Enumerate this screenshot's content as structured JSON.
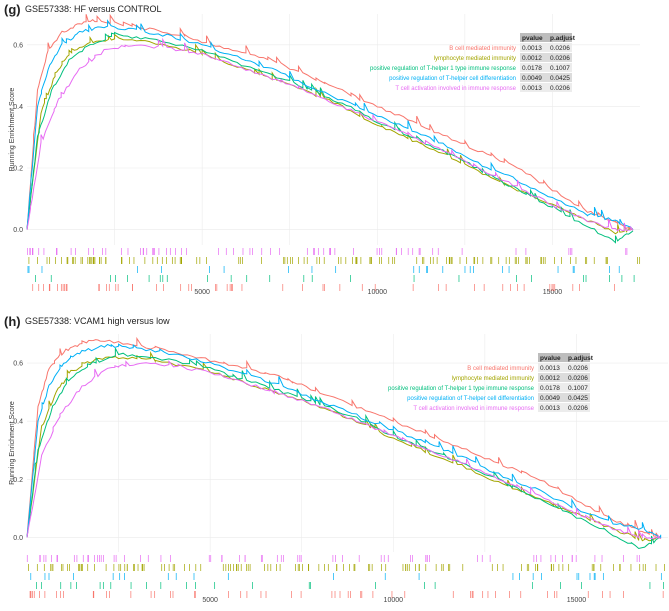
{
  "chart_data": [
    {
      "type": "line",
      "panel_label": "(g)",
      "title": "GSE57338: HF versus CONTROL",
      "ylabel": "Running Enrichment Score",
      "xlabel": "",
      "xlim": [
        0,
        17500
      ],
      "ylim": [
        -0.05,
        0.7
      ],
      "xticks": [
        "5000",
        "10000",
        "15000"
      ],
      "yticks": [
        "0.0",
        "0.2",
        "0.4",
        "0.6"
      ],
      "grid": true,
      "legend_position": "top-right",
      "table_headers": [
        "pvalue",
        "p.adjust"
      ],
      "series": [
        {
          "name": "B cell mediated immunity",
          "color": "#f8766d",
          "pvalue": "0.0013",
          "padjust": "0.0206",
          "x": [
            0,
            300,
            600,
            1000,
            1500,
            2000,
            3000,
            4000,
            5000,
            6000,
            7000,
            8000,
            9000,
            10000,
            11000,
            12000,
            13000,
            14000,
            15000,
            16000,
            16800,
            17300
          ],
          "y": [
            0.0,
            0.45,
            0.58,
            0.64,
            0.67,
            0.68,
            0.66,
            0.64,
            0.61,
            0.58,
            0.55,
            0.5,
            0.45,
            0.4,
            0.35,
            0.3,
            0.25,
            0.2,
            0.13,
            0.06,
            0.02,
            0.0
          ]
        },
        {
          "name": "lymphocyte mediated immunity",
          "color": "#a3a500",
          "pvalue": "0.0012",
          "padjust": "0.0206",
          "x": [
            0,
            400,
            800,
            1200,
            1800,
            2500,
            3500,
            5000,
            6000,
            7000,
            8000,
            9000,
            10000,
            11000,
            12000,
            13000,
            14000,
            15000,
            16000,
            16800,
            17300
          ],
          "y": [
            0.0,
            0.38,
            0.5,
            0.57,
            0.61,
            0.62,
            0.61,
            0.57,
            0.53,
            0.49,
            0.45,
            0.4,
            0.34,
            0.29,
            0.24,
            0.18,
            0.13,
            0.08,
            0.03,
            -0.01,
            0.0
          ]
        },
        {
          "name": "positive regulation of T-helper 1 type immune response",
          "color": "#00bf7d",
          "pvalue": "0.0178",
          "padjust": "0.1007",
          "x": [
            0,
            300,
            700,
            1200,
            1800,
            2500,
            3500,
            5000,
            6000,
            7000,
            8000,
            9000,
            10000,
            11000,
            12000,
            13000,
            14000,
            15000,
            16000,
            16800,
            17300
          ],
          "y": [
            0.0,
            0.3,
            0.45,
            0.55,
            0.6,
            0.63,
            0.62,
            0.58,
            0.54,
            0.5,
            0.46,
            0.41,
            0.35,
            0.3,
            0.25,
            0.19,
            0.13,
            0.07,
            0.01,
            -0.04,
            0.0
          ]
        },
        {
          "name": "positive regulation of T-helper cell differentiation",
          "color": "#00b0f6",
          "pvalue": "0.0049",
          "padjust": "0.0425",
          "x": [
            0,
            300,
            600,
            1000,
            1500,
            2200,
            3000,
            4000,
            5000,
            6000,
            7000,
            8000,
            9000,
            10000,
            11000,
            12000,
            13000,
            14000,
            15000,
            16000,
            16800,
            17300
          ],
          "y": [
            0.0,
            0.4,
            0.52,
            0.6,
            0.64,
            0.66,
            0.65,
            0.63,
            0.6,
            0.56,
            0.52,
            0.47,
            0.42,
            0.37,
            0.32,
            0.27,
            0.21,
            0.16,
            0.1,
            0.05,
            0.03,
            0.0
          ]
        },
        {
          "name": "T cell activation involved in immune response",
          "color": "#e76bf3",
          "pvalue": "0.0013",
          "padjust": "0.0206",
          "x": [
            0,
            400,
            900,
            1500,
            2200,
            3000,
            4000,
            5000,
            6000,
            7000,
            8000,
            9000,
            10000,
            11000,
            12000,
            13000,
            14000,
            15000,
            16000,
            16800,
            17300
          ],
          "y": [
            0.0,
            0.28,
            0.42,
            0.52,
            0.58,
            0.6,
            0.59,
            0.57,
            0.53,
            0.49,
            0.45,
            0.4,
            0.35,
            0.3,
            0.25,
            0.19,
            0.14,
            0.08,
            0.03,
            0.0,
            0.0
          ]
        }
      ]
    },
    {
      "type": "line",
      "panel_label": "(h)",
      "title": "GSE57338: VCAM1 high versus low",
      "ylabel": "Running Enrichment Score",
      "xlabel": "",
      "xlim": [
        0,
        17500
      ],
      "ylim": [
        -0.05,
        0.7
      ],
      "xticks": [
        "5000",
        "10000",
        "15000"
      ],
      "yticks": [
        "0.0",
        "0.2",
        "0.4",
        "0.6"
      ],
      "grid": true,
      "legend_position": "top-right",
      "table_headers": [
        "pvalue",
        "p.adjust"
      ],
      "series": [
        {
          "name": "B cell mediated immunity",
          "color": "#f8766d",
          "pvalue": "0.0013",
          "padjust": "0.0206",
          "x": [
            0,
            300,
            600,
            1000,
            1500,
            2000,
            3000,
            4000,
            5000,
            6000,
            7000,
            8000,
            9000,
            10000,
            11000,
            12000,
            13000,
            14000,
            15000,
            16000,
            16800,
            17300
          ],
          "y": [
            0.0,
            0.45,
            0.58,
            0.64,
            0.67,
            0.68,
            0.66,
            0.64,
            0.61,
            0.58,
            0.55,
            0.5,
            0.45,
            0.4,
            0.35,
            0.3,
            0.25,
            0.2,
            0.13,
            0.06,
            0.02,
            0.0
          ]
        },
        {
          "name": "lymphocyte mediated immunity",
          "color": "#a3a500",
          "pvalue": "0.0012",
          "padjust": "0.0206",
          "x": [
            0,
            400,
            800,
            1200,
            1800,
            2500,
            3500,
            5000,
            6000,
            7000,
            8000,
            9000,
            10000,
            11000,
            12000,
            13000,
            14000,
            15000,
            16000,
            16800,
            17300
          ],
          "y": [
            0.0,
            0.38,
            0.5,
            0.57,
            0.61,
            0.62,
            0.61,
            0.57,
            0.53,
            0.49,
            0.45,
            0.4,
            0.34,
            0.29,
            0.24,
            0.18,
            0.13,
            0.08,
            0.03,
            -0.01,
            0.0
          ]
        },
        {
          "name": "positive regulation of T-helper 1 type immune response",
          "color": "#00bf7d",
          "pvalue": "0.0178",
          "padjust": "0.1007",
          "x": [
            0,
            300,
            700,
            1200,
            1800,
            2500,
            3500,
            5000,
            6000,
            7000,
            8000,
            9000,
            10000,
            11000,
            12000,
            13000,
            14000,
            15000,
            16000,
            16800,
            17300
          ],
          "y": [
            0.0,
            0.3,
            0.45,
            0.55,
            0.6,
            0.63,
            0.62,
            0.58,
            0.54,
            0.5,
            0.46,
            0.41,
            0.35,
            0.3,
            0.25,
            0.19,
            0.13,
            0.07,
            0.01,
            -0.04,
            0.0
          ]
        },
        {
          "name": "positive regulation of T-helper cell differentiation",
          "color": "#00b0f6",
          "pvalue": "0.0049",
          "padjust": "0.0425",
          "x": [
            0,
            300,
            600,
            1000,
            1500,
            2200,
            3000,
            4000,
            5000,
            6000,
            7000,
            8000,
            9000,
            10000,
            11000,
            12000,
            13000,
            14000,
            15000,
            16000,
            16800,
            17300
          ],
          "y": [
            0.0,
            0.4,
            0.52,
            0.6,
            0.64,
            0.66,
            0.65,
            0.63,
            0.6,
            0.56,
            0.52,
            0.47,
            0.42,
            0.37,
            0.32,
            0.27,
            0.21,
            0.16,
            0.1,
            0.05,
            0.03,
            0.0
          ]
        },
        {
          "name": "T cell activation involved in immune response",
          "color": "#e76bf3",
          "pvalue": "0.0013",
          "padjust": "0.0206",
          "x": [
            0,
            400,
            900,
            1500,
            2200,
            3000,
            4000,
            5000,
            6000,
            7000,
            8000,
            9000,
            10000,
            11000,
            12000,
            13000,
            14000,
            15000,
            16000,
            16800,
            17300
          ],
          "y": [
            0.0,
            0.28,
            0.42,
            0.52,
            0.58,
            0.6,
            0.59,
            0.57,
            0.53,
            0.49,
            0.45,
            0.4,
            0.35,
            0.3,
            0.25,
            0.19,
            0.14,
            0.08,
            0.03,
            0.0,
            0.0
          ]
        }
      ]
    }
  ]
}
